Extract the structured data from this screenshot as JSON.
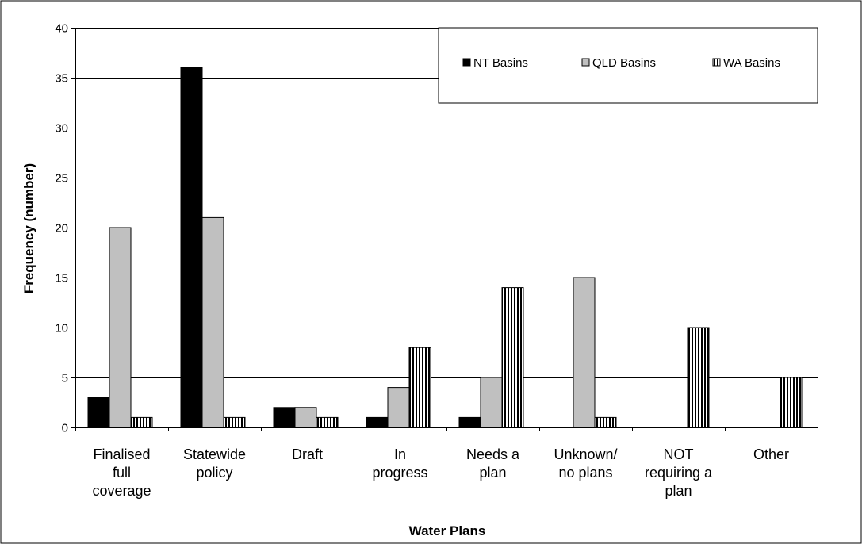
{
  "chart_data": {
    "type": "bar",
    "title": "",
    "xlabel": "Water Plans",
    "ylabel": "Frequency (number)",
    "ylim": [
      0,
      40
    ],
    "yticks": [
      0,
      5,
      10,
      15,
      20,
      25,
      30,
      35,
      40
    ],
    "grid": true,
    "legend_position": "top-right",
    "categories": [
      [
        "Finalised",
        "full",
        "coverage"
      ],
      [
        "Statewide",
        "policy"
      ],
      [
        "Draft"
      ],
      [
        "In",
        "progress"
      ],
      [
        "Needs a",
        "plan"
      ],
      [
        "Unknown/",
        "no plans"
      ],
      [
        "NOT",
        "requiring a",
        "plan"
      ],
      [
        "Other"
      ]
    ],
    "series": [
      {
        "name": "NT Basins",
        "color": "#000000",
        "pattern": "solid",
        "values": [
          3,
          36,
          2,
          1,
          1,
          0,
          0,
          0
        ]
      },
      {
        "name": "QLD Basins",
        "color": "#c0c0c0",
        "pattern": "solid",
        "values": [
          20,
          21,
          2,
          4,
          5,
          15,
          0,
          0
        ]
      },
      {
        "name": "WA Basins",
        "color": "#000000",
        "pattern": "vertical-stripes",
        "values": [
          1,
          1,
          1,
          8,
          14,
          1,
          10,
          5
        ]
      }
    ]
  }
}
